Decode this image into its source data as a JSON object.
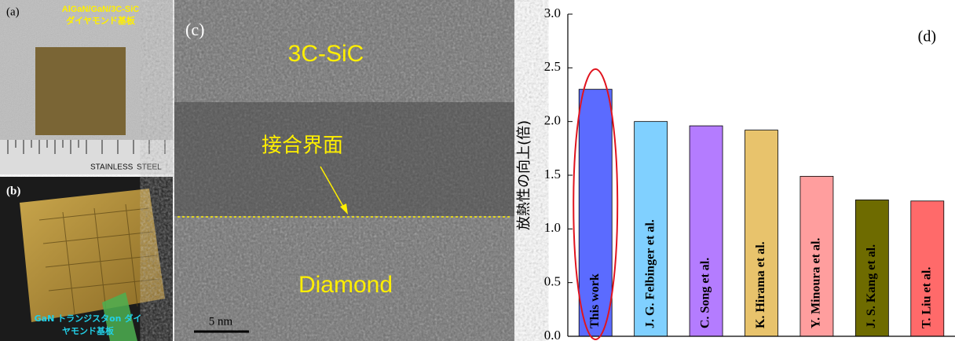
{
  "panels": {
    "a": {
      "label": "(a)",
      "caption_line1": "AlGaN/GaN/3C-SiC",
      "caption_line2": "ダイヤモンド基板",
      "ruler_text_1": "STAINLESS",
      "ruler_text_2": "STEEL"
    },
    "b": {
      "label": "(b)",
      "caption_line1": "GaN トランジスタon ダイ",
      "caption_line2": "ヤモンド基板"
    },
    "c": {
      "label": "(c)",
      "top_layer": "3C-SiC",
      "interface": "接合界面",
      "bottom_layer": "Diamond",
      "scale_bar": "5 nm"
    }
  },
  "chart_data": {
    "type": "bar",
    "annotation": "(d)",
    "y_label": "放熱性の向上(倍)",
    "categories": [
      "This work",
      "J. G. Felbinger et al.",
      "C. Song et al.",
      "K. Hirama et al.",
      "Y. Minoura et al.",
      "J. S. Kang et al.",
      "T. Liu et al."
    ],
    "values": [
      2.3,
      2.0,
      1.96,
      1.92,
      1.49,
      1.27,
      1.26
    ],
    "colors": [
      "#5b6bff",
      "#80d0ff",
      "#b47cff",
      "#e8c36c",
      "#ff9e9e",
      "#6e6b00",
      "#ff6a6a"
    ],
    "ylim": [
      0,
      3
    ],
    "yticks": [
      {
        "value": 0,
        "label": "0.0"
      },
      0.5,
      {
        "value": 1,
        "label": "1.0"
      },
      1.5,
      {
        "value": 2,
        "label": "2.0"
      },
      2.5,
      {
        "value": 3,
        "label": "3.0"
      }
    ]
  }
}
